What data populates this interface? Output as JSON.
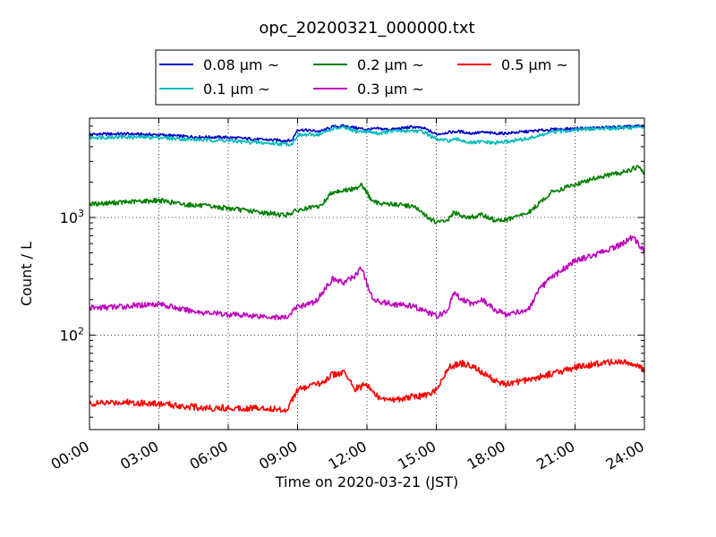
{
  "chart_data": {
    "type": "line",
    "title": "opc_20200321_000000.txt",
    "xlabel": "Time on 2020-03-21 (JST)",
    "ylabel": "Count / L",
    "yscale": "log",
    "ylim": [
      15.7,
      7000
    ],
    "xlim": [
      "00:00",
      "24:00"
    ],
    "x_tick_labels": [
      "00:00",
      "03:00",
      "06:00",
      "09:00",
      "12:00",
      "15:00",
      "18:00",
      "21:00",
      "24:00"
    ],
    "y_tick_labels": [
      {
        "value": 100,
        "base": "10",
        "exp": "2"
      },
      {
        "value": 1000,
        "base": "10",
        "exp": "3"
      }
    ],
    "grid": true,
    "legend_position": "top-center",
    "series": [
      {
        "name": "0.08 μm ~",
        "size": "0.08",
        "color": "#0000cc",
        "x": [
          "00:00",
          "01:30",
          "03:00",
          "04:30",
          "06:00",
          "07:30",
          "08:45",
          "09:00",
          "10:00",
          "10:30",
          "11:00",
          "11:30",
          "12:00",
          "12:30",
          "13:00",
          "14:00",
          "14:30",
          "15:00",
          "15:30",
          "16:00",
          "16:30",
          "17:00",
          "17:30",
          "18:00",
          "19:00",
          "20:00",
          "21:00",
          "22:00",
          "23:00",
          "24:00"
        ],
        "values": [
          5100,
          5150,
          5050,
          4850,
          4800,
          4600,
          4500,
          5600,
          5400,
          5900,
          6000,
          5800,
          5600,
          5700,
          5600,
          5900,
          5700,
          5100,
          5300,
          5400,
          5200,
          5300,
          5200,
          5200,
          5400,
          5600,
          5700,
          5800,
          5900,
          6000
        ]
      },
      {
        "name": "0.1 μm ~",
        "size": "0.1",
        "color": "#00bbbb",
        "x": [
          "00:00",
          "01:30",
          "03:00",
          "04:30",
          "06:00",
          "07:30",
          "08:45",
          "09:00",
          "10:00",
          "10:30",
          "11:00",
          "11:30",
          "12:00",
          "12:30",
          "13:00",
          "14:00",
          "14:30",
          "15:00",
          "15:30",
          "16:00",
          "16:30",
          "17:00",
          "17:30",
          "18:00",
          "19:00",
          "20:00",
          "21:00",
          "22:00",
          "23:00",
          "24:00"
        ],
        "values": [
          4800,
          4850,
          4800,
          4600,
          4500,
          4300,
          4200,
          5000,
          5100,
          5700,
          5800,
          5400,
          5400,
          5200,
          5400,
          5500,
          5300,
          4600,
          4500,
          4600,
          4300,
          4400,
          4300,
          4400,
          4700,
          5300,
          5600,
          5700,
          5800,
          5900
        ]
      },
      {
        "name": "0.2 μm ~",
        "size": "0.2",
        "color": "#008000",
        "x": [
          "00:00",
          "01:30",
          "03:00",
          "04:00",
          "05:00",
          "06:00",
          "07:30",
          "08:30",
          "09:00",
          "10:00",
          "10:30",
          "11:00",
          "11:30",
          "11:45",
          "12:15",
          "13:00",
          "14:00",
          "14:30",
          "15:00",
          "15:30",
          "15:45",
          "16:00",
          "16:30",
          "17:00",
          "17:30",
          "18:00",
          "19:00",
          "20:00",
          "21:00",
          "22:00",
          "23:00",
          "23:45",
          "24:00"
        ],
        "values": [
          1300,
          1350,
          1400,
          1300,
          1250,
          1200,
          1100,
          1050,
          1150,
          1250,
          1650,
          1700,
          1750,
          1950,
          1350,
          1300,
          1250,
          1050,
          900,
          950,
          1100,
          1050,
          1000,
          1050,
          950,
          950,
          1100,
          1650,
          1900,
          2200,
          2400,
          2700,
          2350
        ]
      },
      {
        "name": "0.3 μm ~",
        "size": "0.3",
        "color": "#bf00bf",
        "x": [
          "00:00",
          "01:30",
          "03:00",
          "04:00",
          "05:00",
          "06:00",
          "07:30",
          "08:30",
          "09:00",
          "09:45",
          "10:30",
          "11:00",
          "11:30",
          "11:45",
          "12:15",
          "13:00",
          "14:00",
          "14:30",
          "15:00",
          "15:30",
          "15:45",
          "16:00",
          "16:30",
          "17:00",
          "17:30",
          "18:00",
          "19:00",
          "19:30",
          "20:00",
          "21:00",
          "22:00",
          "23:00",
          "23:30",
          "24:00"
        ],
        "values": [
          170,
          175,
          185,
          165,
          155,
          150,
          145,
          140,
          175,
          190,
          300,
          280,
          320,
          380,
          200,
          185,
          175,
          160,
          145,
          160,
          230,
          210,
          185,
          200,
          165,
          150,
          165,
          250,
          310,
          430,
          490,
          590,
          680,
          520
        ]
      },
      {
        "name": "0.5 μm ~",
        "size": "0.5",
        "color": "#ff0000",
        "x": [
          "00:00",
          "01:30",
          "03:00",
          "04:00",
          "05:00",
          "06:00",
          "07:30",
          "08:30",
          "09:00",
          "10:00",
          "10:30",
          "11:00",
          "11:30",
          "12:00",
          "12:30",
          "13:00",
          "14:00",
          "14:45",
          "15:00",
          "15:30",
          "16:00",
          "16:30",
          "17:00",
          "17:30",
          "18:00",
          "19:00",
          "20:00",
          "21:00",
          "22:00",
          "23:00",
          "23:45",
          "24:00"
        ],
        "values": [
          26,
          27,
          26,
          25,
          24,
          24,
          24,
          23,
          34,
          39,
          46,
          48,
          35,
          38,
          29,
          28,
          30,
          31,
          35,
          52,
          58,
          55,
          48,
          41,
          38,
          42,
          47,
          53,
          57,
          60,
          54,
          50
        ]
      }
    ]
  }
}
